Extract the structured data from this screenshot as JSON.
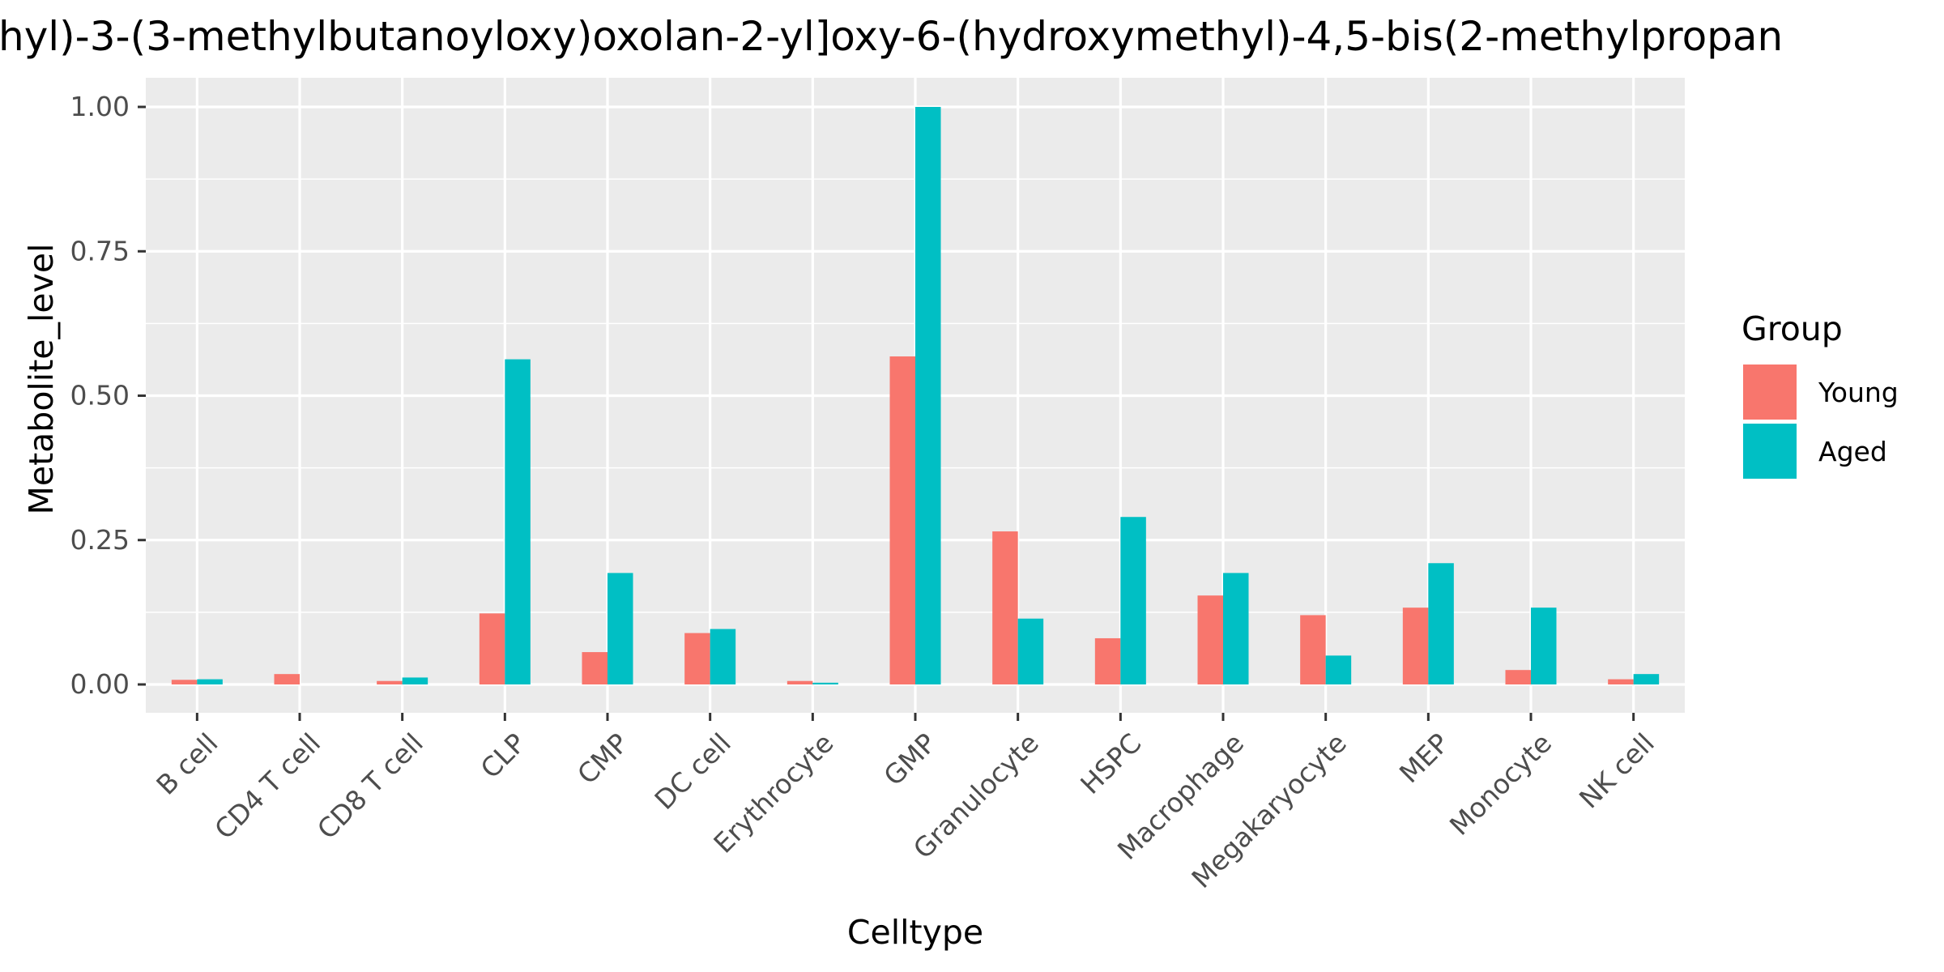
{
  "chart_data": {
    "type": "bar",
    "title": "hyl)-3-(3-methylbutanoyloxy)oxolan-2-yl]oxy-6-(hydroxymethyl)-4,5-bis(2-methylpropan",
    "xlabel": "Celltype",
    "ylabel": "Metabolite_level",
    "ylim": [
      0,
      1.0
    ],
    "yticks": [
      0.0,
      0.25,
      0.5,
      0.75,
      1.0
    ],
    "ytick_labels": [
      "0.00",
      "0.25",
      "0.50",
      "0.75",
      "1.00"
    ],
    "grid": true,
    "legend_title": "Group",
    "legend_position": "right",
    "categories": [
      "B cell",
      "CD4 T cell",
      "CD8 T cell",
      "CLP",
      "CMP",
      "DC cell",
      "Erythrocyte",
      "GMP",
      "Granulocyte",
      "HSPC",
      "Macrophage",
      "Megakaryocyte",
      "MEP",
      "Monocyte",
      "NK cell"
    ],
    "series": [
      {
        "name": "Young",
        "color": "#F8766D",
        "values": [
          0.008,
          0.018,
          0.006,
          0.123,
          0.056,
          0.089,
          0.006,
          0.568,
          0.265,
          0.08,
          0.154,
          0.12,
          0.133,
          0.025,
          0.009
        ]
      },
      {
        "name": "Aged",
        "color": "#00BFC4",
        "values": [
          0.009,
          0.0,
          0.012,
          0.563,
          0.193,
          0.096,
          0.003,
          1.0,
          0.114,
          0.29,
          0.193,
          0.05,
          0.21,
          0.133,
          0.018
        ]
      }
    ]
  },
  "colors": {
    "panel_background": "#EBEBEB",
    "grid": "#FFFFFF"
  }
}
